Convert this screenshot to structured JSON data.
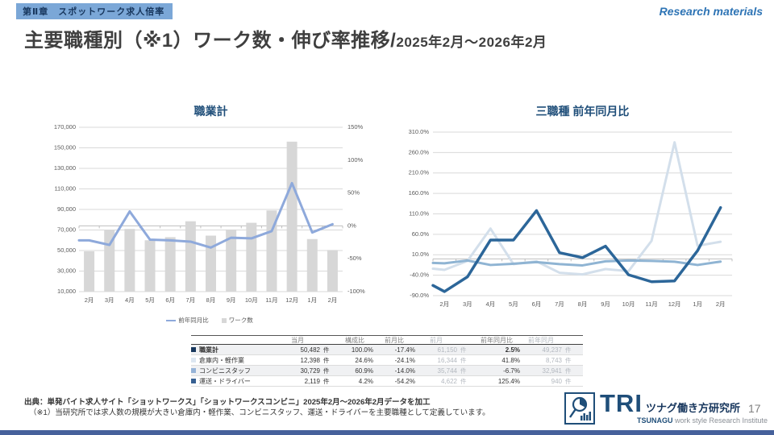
{
  "header": {
    "badge": "第Ⅱ章　スポットワーク求人倍率",
    "watermark": "Research materials",
    "title_main": "主要職種別（※1）ワーク数・伸び率推移/",
    "title_sub": "2025年2月～2026年2月"
  },
  "colors": {
    "badge_bg": "#7ba7d7",
    "badge_text": "#17365d",
    "accent_navy": "#1f4e79",
    "grid": "#d9d9d9",
    "axis_line": "#bfbfbf",
    "axis_text": "#595959",
    "bottom_bar": "#46619b"
  },
  "chart_data": [
    {
      "type": "bar",
      "title": "職業計",
      "categories": [
        "2月",
        "3月",
        "4月",
        "5月",
        "6月",
        "7月",
        "8月",
        "9月",
        "10月",
        "11月",
        "12月",
        "1月",
        "2月"
      ],
      "series": [
        {
          "name": "ワーク数",
          "type": "bar",
          "axis": "left",
          "color": "#d7d7d7",
          "values": [
            49237,
            70000,
            71000,
            60000,
            63000,
            78500,
            64500,
            70500,
            77000,
            89000,
            156000,
            61150,
            50482
          ]
        },
        {
          "name": "前年同月比",
          "type": "line",
          "axis": "right",
          "color": "#8ea9db",
          "lead_in": -22,
          "values": [
            -22,
            -29,
            22,
            -21,
            -22,
            -24,
            -33,
            -18,
            -19,
            -8,
            65,
            -10,
            2.5
          ]
        }
      ],
      "left_axis": {
        "min": 10000,
        "max": 170000,
        "step": 20000
      },
      "right_axis": {
        "min": -100,
        "max": 150,
        "step": 50
      },
      "legend": [
        {
          "label": "前年同月比",
          "marker": "line",
          "color": "#8ea9db"
        },
        {
          "label": "ワーク数",
          "marker": "square",
          "color": "#d7d7d7"
        }
      ]
    },
    {
      "type": "line",
      "title": "三職種 前年同月比",
      "categories": [
        "2月",
        "3月",
        "4月",
        "5月",
        "6月",
        "7月",
        "8月",
        "9月",
        "10月",
        "11月",
        "12月",
        "1月",
        "2月"
      ],
      "y_axis": {
        "min": -90,
        "max": 310,
        "step": 50
      },
      "series": [
        {
          "name": "倉庫内・軽作業",
          "color": "#d3dfeb",
          "width": 3,
          "lead_in": -24,
          "values": [
            -27,
            -5,
            74,
            -13,
            -6,
            -34,
            -38,
            -25,
            -30,
            44,
            285,
            32,
            41.8
          ]
        },
        {
          "name": "コンビニスタッフ",
          "color": "#8fb4d3",
          "width": 3,
          "lead_in": -10,
          "values": [
            -11,
            -4,
            -15,
            -12,
            -8,
            -13,
            -16,
            -6,
            -4,
            -5,
            -7,
            -15,
            -6.7
          ]
        },
        {
          "name": "運送・ドライバー",
          "color": "#2c6699",
          "width": 3.5,
          "lead_in": -65,
          "values": [
            -80,
            -44,
            46,
            46,
            118,
            15,
            3,
            31,
            -39,
            -56,
            -54,
            20,
            125.4
          ]
        }
      ]
    }
  ],
  "table": {
    "headers": {
      "current": "当月",
      "share": "構成比",
      "mom": "前月比",
      "prev": "前月",
      "yoy": "前年同月比",
      "prev_year": "前年同月"
    },
    "unit": "件",
    "rows": [
      {
        "label": "職業計",
        "chip": "#17375d",
        "bold": true,
        "current": "50,482",
        "share": "100.0%",
        "mom": "-17.4%",
        "prev": "61,150",
        "yoy": "2.5%",
        "prev_year": "49,237"
      },
      {
        "label": "倉庫内・軽作業",
        "chip": "#dce6f1",
        "bold": false,
        "current": "12,398",
        "share": "24.6%",
        "mom": "-24.1%",
        "prev": "16,344",
        "yoy": "41.8%",
        "prev_year": "8,743"
      },
      {
        "label": "コンビニスタッフ",
        "chip": "#95b3d7",
        "bold": false,
        "current": "30,729",
        "share": "60.9%",
        "mom": "-14.0%",
        "prev": "35,744",
        "yoy": "-6.7%",
        "prev_year": "32,941"
      },
      {
        "label": "運送・ドライバー",
        "chip": "#376092",
        "bold": false,
        "current": "2,119",
        "share": "4.2%",
        "mom": "-54.2%",
        "prev": "4,622",
        "yoy": "125.4%",
        "prev_year": "940"
      }
    ]
  },
  "footer": {
    "line1": "出典：単発バイト求人サイト「ショットワークス」「ショットワークスコンビニ」2025年2月～2026年2月データを加工",
    "line2": "（※1）当研究所では求人数の規模が大きい倉庫内・軽作業、コンビニスタッフ、運送・ドライバーを主要職種として定義しています。"
  },
  "logo": {
    "tri": "TRI",
    "jp": "ツナグ働き方研究所",
    "en_bold": "TSUNAGU",
    "en_rest": " work style Research Institute"
  },
  "page_number": "17"
}
